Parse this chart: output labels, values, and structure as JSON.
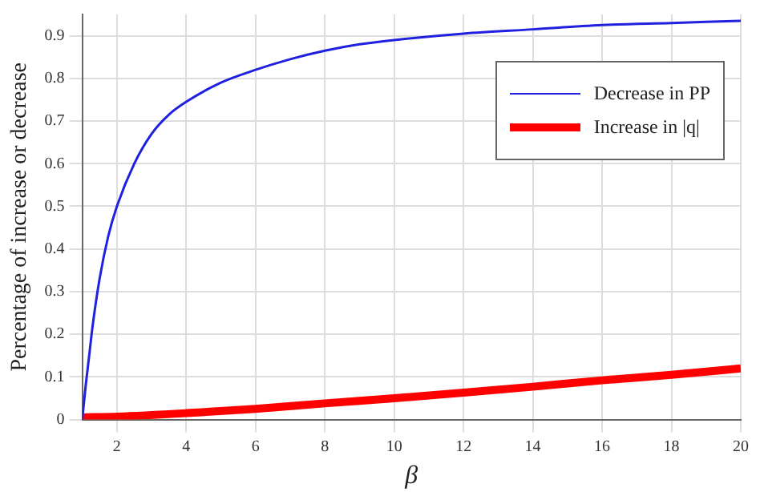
{
  "chart_data": {
    "type": "line",
    "xlabel": "β",
    "ylabel": "Percentage of increase or decrease",
    "xlim": [
      1,
      20
    ],
    "xticks": [
      2,
      4,
      6,
      8,
      10,
      12,
      14,
      16,
      18,
      20
    ],
    "ylim": [
      0,
      0.95
    ],
    "yticks": [
      0,
      0.1,
      0.2,
      0.3,
      0.4,
      0.5,
      0.6,
      0.7,
      0.8,
      0.9
    ],
    "grid": true,
    "legend": "top right",
    "marker": "none",
    "line_style": "solid",
    "series": [
      {
        "name": "Decrease in PP",
        "color": "#2020e0",
        "x": [
          1,
          1.1,
          1.2,
          1.3,
          1.5,
          1.75,
          2,
          2.5,
          3,
          3.5,
          4,
          5,
          6,
          7,
          8,
          9,
          10,
          12,
          14,
          16,
          18,
          20
        ],
        "values": [
          0,
          0.08,
          0.15,
          0.22,
          0.33,
          0.43,
          0.5,
          0.6,
          0.67,
          0.715,
          0.745,
          0.79,
          0.82,
          0.845,
          0.865,
          0.88,
          0.89,
          0.905,
          0.915,
          0.925,
          0.93,
          0.935
        ]
      },
      {
        "name": "Increase in |q|",
        "color": "#ff0000",
        "x": [
          1,
          2,
          4,
          6,
          8,
          10,
          12,
          14,
          16,
          18,
          20
        ],
        "values": [
          0.005,
          0.007,
          0.015,
          0.025,
          0.038,
          0.05,
          0.063,
          0.077,
          0.092,
          0.105,
          0.12
        ]
      }
    ]
  }
}
